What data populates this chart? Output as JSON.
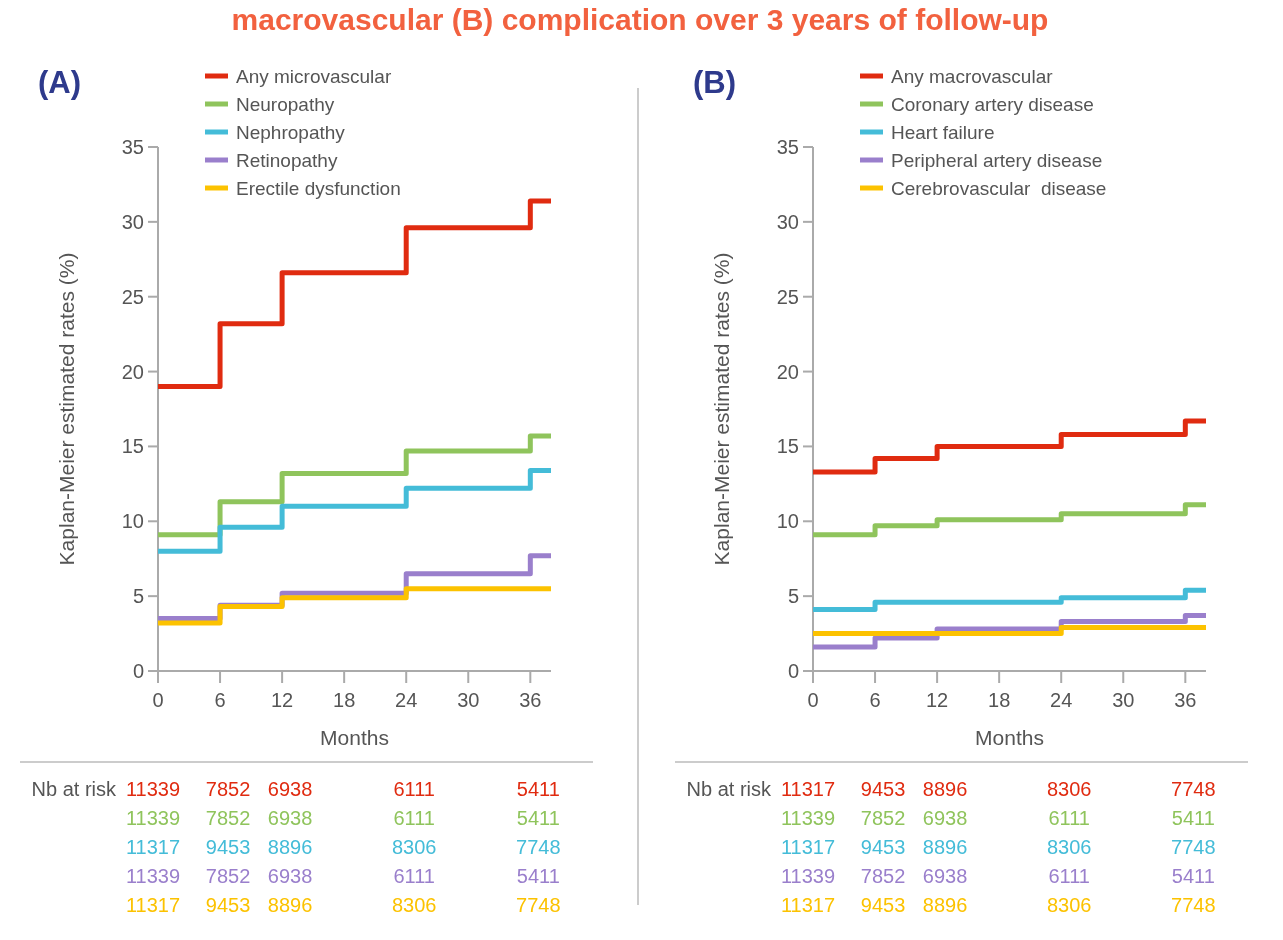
{
  "chart_data": [
    {
      "type": "step",
      "title": "macrovascular (B) complication over 3 years of follow-up",
      "subtitle": "(A)",
      "xlabel": "Months",
      "ylabel": "Kaplan-Meier estimated rates (%)",
      "xlim": [
        0,
        38
      ],
      "xticks": [
        0,
        6,
        12,
        18,
        24,
        30,
        36
      ],
      "ylim": [
        0,
        35
      ],
      "yticks": [
        0,
        5,
        10,
        15,
        20,
        25,
        30,
        35
      ],
      "grid": false,
      "legend": "top left",
      "line_style": "solid",
      "marker": "none",
      "x": [
        0,
        6,
        12,
        24,
        36,
        38
      ],
      "series": [
        {
          "name": "Any microvascular",
          "color": "#e02b10",
          "values": [
            19.0,
            23.2,
            26.6,
            29.6,
            31.4,
            31.4
          ]
        },
        {
          "name": "Neuropathy",
          "color": "#8fc45c",
          "values": [
            9.1,
            11.3,
            13.2,
            14.7,
            15.7,
            15.7
          ]
        },
        {
          "name": "Nephropathy",
          "color": "#44bcd8",
          "values": [
            8.0,
            9.6,
            11.0,
            12.2,
            13.4,
            13.4
          ]
        },
        {
          "name": "Retinopathy",
          "color": "#9a7fcc",
          "values": [
            3.5,
            4.4,
            5.2,
            6.5,
            7.7,
            7.7
          ]
        },
        {
          "name": "Erectile dysfunction",
          "color": "#fcc200",
          "values": [
            3.2,
            4.3,
            4.9,
            5.5,
            5.5,
            5.5
          ]
        }
      ],
      "annotations": [
        "Nb at risk",
        "11339 7852 6938 6111 5411",
        "11339 7852 6938 6111 5411",
        "11317 9453 8896 8306 7748",
        "11339 7852 6938 6111 5411",
        "11317 9453 8896 8306 7748"
      ]
    },
    {
      "type": "step",
      "subtitle": "(B)",
      "xlabel": "Months",
      "ylabel": "Kaplan-Meier estimated rates (%)",
      "xlim": [
        0,
        38
      ],
      "xticks": [
        0,
        6,
        12,
        18,
        24,
        30,
        36
      ],
      "ylim": [
        0,
        35
      ],
      "yticks": [
        0,
        5,
        10,
        15,
        20,
        25,
        30,
        35
      ],
      "grid": false,
      "legend": "top left",
      "line_style": "solid",
      "marker": "none",
      "x": [
        0,
        6,
        12,
        24,
        36,
        38
      ],
      "series": [
        {
          "name": "Any macrovascular",
          "color": "#e02b10",
          "values": [
            13.3,
            14.2,
            15.0,
            15.8,
            16.7,
            16.7
          ]
        },
        {
          "name": "Coronary artery disease",
          "color": "#8fc45c",
          "values": [
            9.1,
            9.7,
            10.1,
            10.5,
            11.1,
            11.1
          ]
        },
        {
          "name": "Heart failure",
          "color": "#44bcd8",
          "values": [
            4.1,
            4.6,
            4.6,
            4.9,
            5.4,
            5.4
          ]
        },
        {
          "name": "Peripheral artery disease",
          "color": "#9a7fcc",
          "values": [
            1.6,
            2.2,
            2.8,
            3.3,
            3.7,
            3.7
          ]
        },
        {
          "name": "Cerebrovascular  disease",
          "color": "#fcc200",
          "values": [
            2.5,
            2.5,
            2.5,
            2.9,
            2.9,
            2.9
          ]
        }
      ],
      "annotations": [
        "Nb at risk",
        "11317 9453 8896 8306 7748",
        "11339 7852 6938 6111 5411",
        "11317 9453 8896 8306 7748",
        "11339 7852 6938 6111 5411",
        "11317 9453 8896 8306 7748"
      ]
    }
  ]
}
